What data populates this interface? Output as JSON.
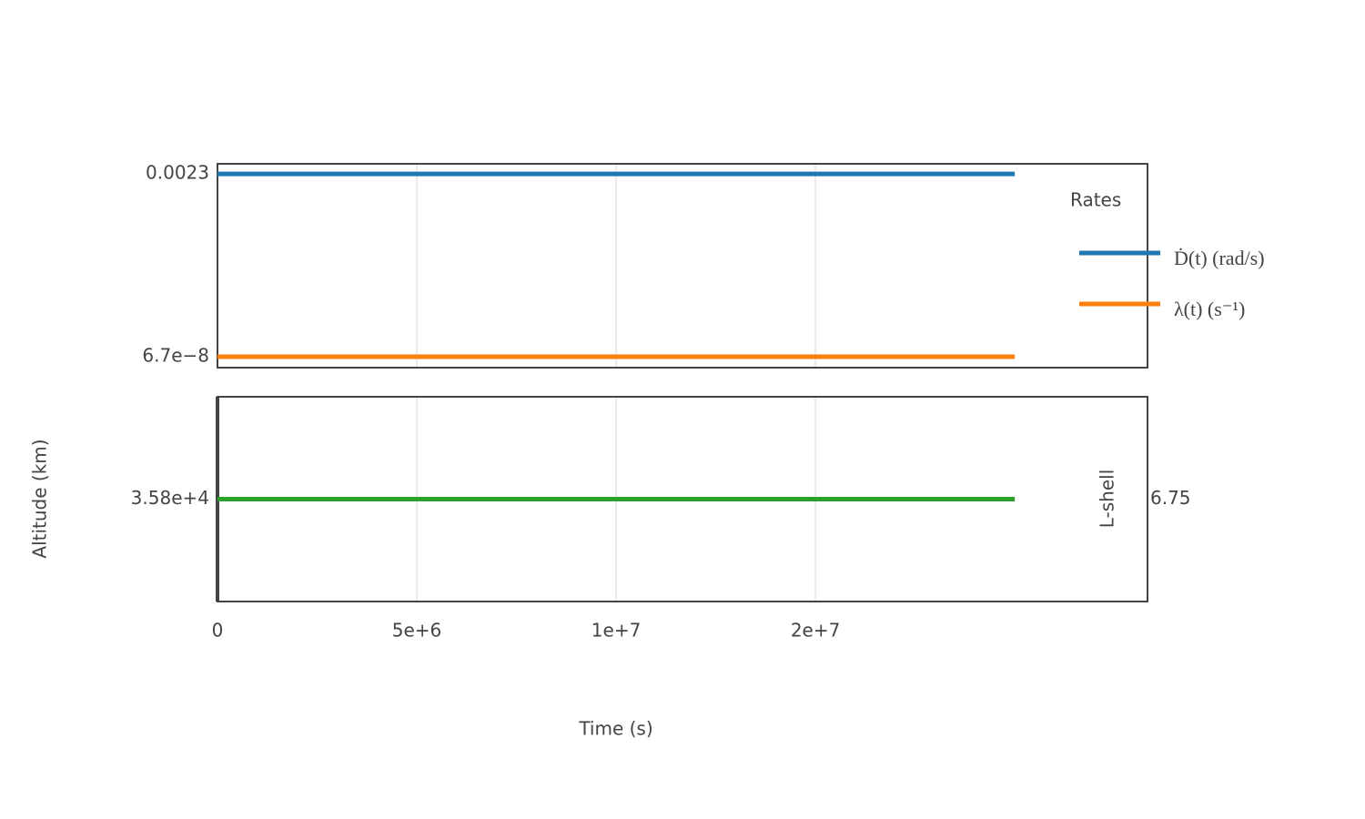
{
  "chart_data": [
    {
      "type": "line",
      "x": [
        0,
        20000000
      ],
      "xlim": [
        0,
        23330000
      ],
      "xticks": [
        0,
        5000000,
        10000000,
        15000000
      ],
      "ylim": [
        3.6e-08,
        0.0041
      ],
      "log_y": true,
      "yticks": [
        0.0023,
        {
          "value": 6.7e-08,
          "label": "6.7e−8"
        }
      ],
      "grid": true,
      "legend_title": "Rates",
      "legend_position": "right",
      "series": [
        {
          "name": "Ḋ(t) (rad/s)",
          "color": "#1f77b4",
          "values": [
            0.0023,
            0.0023
          ]
        },
        {
          "name": "λ(t) (s⁻¹)",
          "color": "#ff7f0e",
          "values": [
            6.7e-08,
            6.7e-08
          ]
        }
      ]
    },
    {
      "type": "line",
      "x": [
        0,
        20000000
      ],
      "xlim": [
        0,
        23330000
      ],
      "xticks": [
        0,
        {
          "value": 5000000,
          "label": "5e+6"
        },
        {
          "value": 10000000,
          "label": "1e+7"
        },
        {
          "value": 15000000,
          "label": "2e+7"
        }
      ],
      "x_label": "Time (s)",
      "y_label": "Altitude (km)",
      "y2_label": "L-shell",
      "ylim": [
        35300,
        36300
      ],
      "yticks": [
        {
          "value": 35800,
          "label": "3.58e+4"
        }
      ],
      "y2lim": [
        6.5,
        7.0
      ],
      "y2ticks": [
        6.75
      ],
      "grid": true,
      "color": "#2ca02c",
      "values": [
        35800,
        35800
      ]
    }
  ]
}
